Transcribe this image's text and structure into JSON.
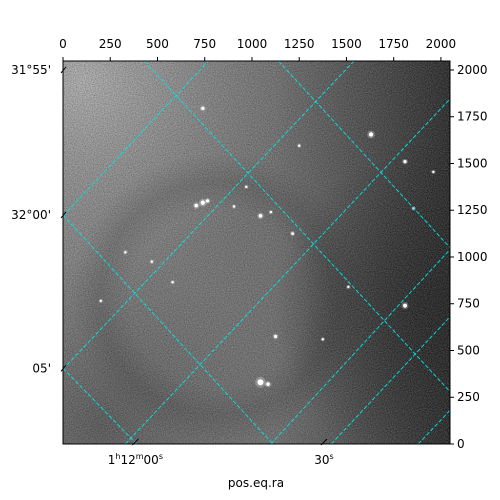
{
  "chart_data": {
    "type": "image",
    "xlabel": "pos.eq.ra",
    "ylabel": "",
    "pixel_axes": {
      "x": {
        "range": [
          0,
          2048
        ],
        "ticks": [
          0,
          250,
          500,
          750,
          1000,
          1250,
          1500,
          1750,
          2000
        ]
      },
      "y": {
        "range": [
          0,
          2048
        ],
        "ticks": [
          0,
          250,
          500,
          750,
          1000,
          1250,
          1500,
          1750,
          2000
        ]
      }
    },
    "ra_ticks": [
      {
        "label": "1h12m00s",
        "main": "1",
        "sup1": "h",
        "mid": "12",
        "sup2": "m",
        "end": "00",
        "sup3": "s",
        "pixel": 383
      },
      {
        "label": "30s",
        "main": "30",
        "sup1": "s",
        "pixel": 1381
      }
    ],
    "dec_ticks": [
      {
        "label": "31°55'",
        "pixel": 2000
      },
      {
        "label": "32°00'",
        "pixel": 1225
      },
      {
        "label": "05'",
        "pixel": 405
      }
    ],
    "grid_color": "#00e5e5",
    "colormap": "gray",
    "sources": [
      {
        "x": 740,
        "y": 1290,
        "r": 11
      },
      {
        "x": 705,
        "y": 1275,
        "r": 9
      },
      {
        "x": 765,
        "y": 1300,
        "r": 8
      },
      {
        "x": 1630,
        "y": 1655,
        "r": 11
      },
      {
        "x": 1810,
        "y": 1510,
        "r": 8
      },
      {
        "x": 1045,
        "y": 1220,
        "r": 9
      },
      {
        "x": 1215,
        "y": 1125,
        "r": 7
      },
      {
        "x": 1045,
        "y": 330,
        "r": 15
      },
      {
        "x": 1085,
        "y": 320,
        "r": 9
      },
      {
        "x": 1810,
        "y": 740,
        "r": 10
      },
      {
        "x": 1125,
        "y": 575,
        "r": 8
      },
      {
        "x": 740,
        "y": 1795,
        "r": 8
      },
      {
        "x": 905,
        "y": 1270,
        "r": 6
      },
      {
        "x": 580,
        "y": 865,
        "r": 6
      },
      {
        "x": 1855,
        "y": 1260,
        "r": 6
      },
      {
        "x": 1250,
        "y": 1595,
        "r": 5
      },
      {
        "x": 970,
        "y": 1375,
        "r": 5
      },
      {
        "x": 470,
        "y": 975,
        "r": 4
      },
      {
        "x": 200,
        "y": 765,
        "r": 4
      },
      {
        "x": 1100,
        "y": 1240,
        "r": 5
      },
      {
        "x": 1375,
        "y": 560,
        "r": 4
      },
      {
        "x": 1960,
        "y": 1455,
        "r": 4
      },
      {
        "x": 330,
        "y": 1025,
        "r": 4
      },
      {
        "x": 1510,
        "y": 840,
        "r": 4
      }
    ],
    "grid_lines": [
      {
        "p1": [
          0,
          1220
        ],
        "p2": [
          770,
          2048
        ]
      },
      {
        "p1": [
          0,
          400
        ],
        "p2": [
          1540,
          2048
        ]
      },
      {
        "p1": [
          330,
          0
        ],
        "p2": [
          2048,
          1845
        ]
      },
      {
        "p1": [
          1420,
          0
        ],
        "p2": [
          2048,
          680
        ]
      },
      {
        "p1": [
          0,
          1225
        ],
        "p2": [
          1110,
          0
        ]
      },
      {
        "p1": [
          0,
          405
        ],
        "p2": [
          390,
          0
        ]
      },
      {
        "p1": [
          430,
          2048
        ],
        "p2": [
          2048,
          280
        ]
      },
      {
        "p1": [
          1100,
          0
        ],
        "p2": [
          2048,
          1040
        ]
      },
      {
        "p1": [
          1140,
          2048
        ],
        "p2": [
          2048,
          1050
        ]
      },
      {
        "p1": [
          1880,
          0
        ],
        "p2": [
          2048,
          180
        ]
      }
    ]
  }
}
